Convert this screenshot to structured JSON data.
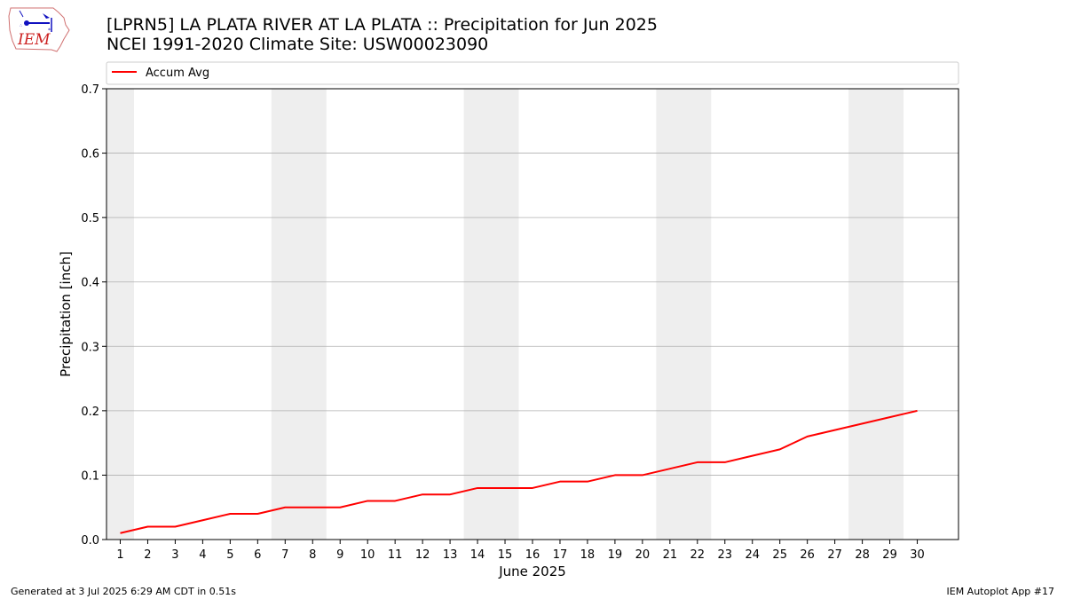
{
  "header": {
    "title_line1": "[LPRN5] LA PLATA RIVER AT LA PLATA :: Precipitation for Jun 2025",
    "title_line2": "NCEI 1991-2020 Climate Site: USW00023090",
    "logo_text": "IEM"
  },
  "footer": {
    "left": "Generated at 3 Jul 2025 6:29 AM CDT in 0.51s",
    "right": "IEM Autoplot App #17"
  },
  "chart_data": {
    "type": "line",
    "xlabel": "June 2025",
    "ylabel": "Precipitation [inch]",
    "x": [
      1,
      2,
      3,
      4,
      5,
      6,
      7,
      8,
      9,
      10,
      11,
      12,
      13,
      14,
      15,
      16,
      17,
      18,
      19,
      20,
      21,
      22,
      23,
      24,
      25,
      26,
      27,
      28,
      29,
      30
    ],
    "xlim": [
      0.5,
      31.5
    ],
    "ylim": [
      0,
      0.7
    ],
    "yticks": [
      0.0,
      0.1,
      0.2,
      0.3,
      0.4,
      0.5,
      0.6,
      0.7
    ],
    "ytick_labels": [
      "0.0",
      "0.1",
      "0.2",
      "0.3",
      "0.4",
      "0.5",
      "0.6",
      "0.7"
    ],
    "grid": "horizontal",
    "legend_position": "top",
    "weekend_shading": [
      [
        0.5,
        1.5
      ],
      [
        6.5,
        8.5
      ],
      [
        13.5,
        15.5
      ],
      [
        20.5,
        22.5
      ],
      [
        27.5,
        29.5
      ]
    ],
    "series": [
      {
        "name": "Accum Avg",
        "color": "#ff0000",
        "values": [
          0.01,
          0.02,
          0.02,
          0.03,
          0.04,
          0.04,
          0.05,
          0.05,
          0.05,
          0.06,
          0.06,
          0.07,
          0.07,
          0.08,
          0.08,
          0.08,
          0.09,
          0.09,
          0.1,
          0.1,
          0.11,
          0.12,
          0.12,
          0.13,
          0.14,
          0.16,
          0.17,
          0.18,
          0.19,
          0.2
        ]
      }
    ]
  }
}
